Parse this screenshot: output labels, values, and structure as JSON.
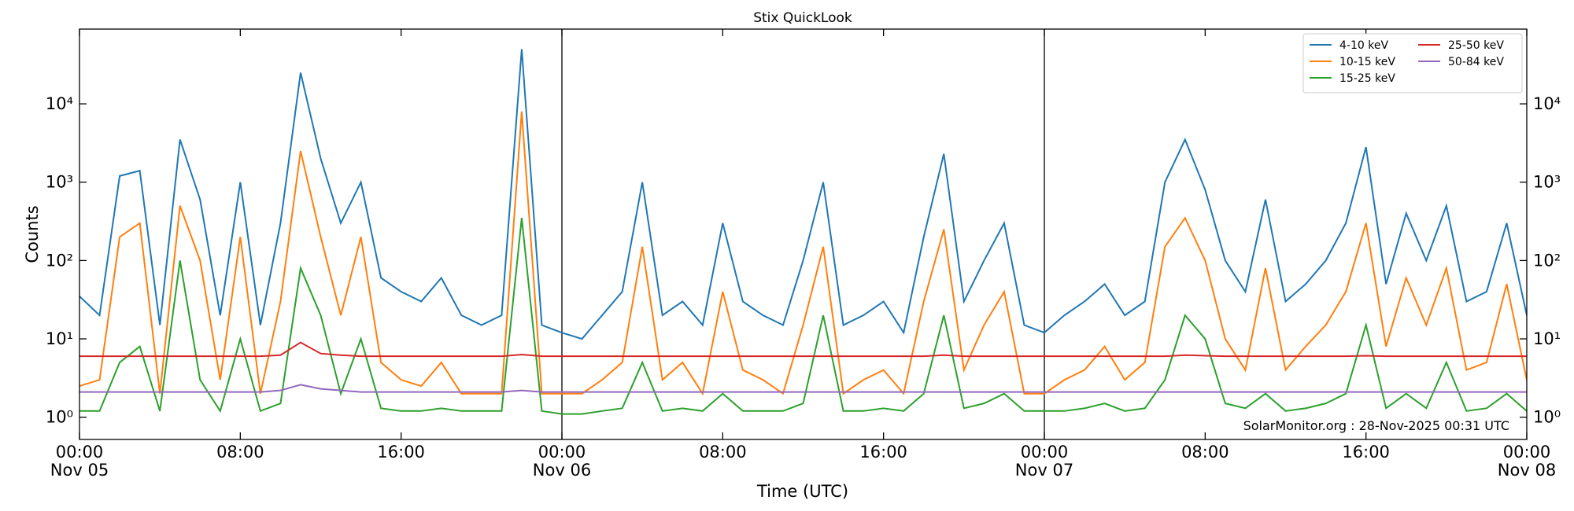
{
  "chart_data": {
    "type": "line",
    "title": "Stix QuickLook",
    "x_label": "Time (UTC)",
    "y_label": "Counts",
    "annotation": "SolarMonitor.org : 28-Nov-2025 00:31 UTC",
    "log_y": true,
    "legend": "upper right",
    "legend_columns": 2,
    "x": [
      0,
      1,
      2,
      3,
      4,
      5,
      6,
      7,
      8,
      9,
      10,
      11,
      12,
      13,
      14,
      15,
      16,
      17,
      18,
      19,
      20,
      21,
      22,
      23,
      24,
      25,
      26,
      27,
      28,
      29,
      30,
      31,
      32,
      33,
      34,
      35,
      36,
      37,
      38,
      39,
      40,
      41,
      42,
      43,
      44,
      45,
      46,
      47,
      48,
      49,
      50,
      51,
      52,
      53,
      54,
      55,
      56,
      57,
      58,
      59,
      60,
      61,
      62,
      63,
      64,
      65,
      66,
      67,
      68,
      69,
      70,
      71,
      72
    ],
    "xlim": [
      0,
      72
    ],
    "xticks": [
      {
        "value": 0,
        "label": "00:00\nNov 05"
      },
      {
        "value": 8,
        "label": "08:00"
      },
      {
        "value": 16,
        "label": "16:00"
      },
      {
        "value": 24,
        "label": "00:00\nNov 06"
      },
      {
        "value": 32,
        "label": "08:00"
      },
      {
        "value": 40,
        "label": "16:00"
      },
      {
        "value": 48,
        "label": "00:00\nNov 07"
      },
      {
        "value": 56,
        "label": "08:00"
      },
      {
        "value": 64,
        "label": "16:00"
      },
      {
        "value": 72,
        "label": "00:00\nNov 08"
      }
    ],
    "vlines": [
      24,
      48
    ],
    "ylim": [
      0.52,
      90000
    ],
    "yticks": [
      {
        "value": 1,
        "label": "10⁰"
      },
      {
        "value": 10,
        "label": "10¹"
      },
      {
        "value": 100,
        "label": "10²"
      },
      {
        "value": 1000,
        "label": "10³"
      },
      {
        "value": 10000,
        "label": "10⁴"
      }
    ],
    "series": [
      {
        "name": "4-10 keV",
        "color": "#1f77b4",
        "values": [
          35,
          20,
          1200,
          1400,
          15,
          3500,
          600,
          20,
          1000,
          15,
          300,
          25000,
          2000,
          300,
          1000,
          60,
          40,
          30,
          60,
          20,
          15,
          20,
          50000,
          15,
          12,
          10,
          20,
          40,
          1000,
          20,
          30,
          15,
          300,
          30,
          20,
          15,
          100,
          1000,
          15,
          20,
          30,
          12,
          200,
          2300,
          30,
          100,
          300,
          15,
          12,
          20,
          30,
          50,
          20,
          30,
          1000,
          3500,
          800,
          100,
          40,
          600,
          30,
          50,
          100,
          300,
          2800,
          50,
          400,
          100,
          500,
          30,
          40,
          300,
          20
        ]
      },
      {
        "name": "10-15 keV",
        "color": "#ff7f0e",
        "values": [
          2.5,
          3,
          200,
          300,
          2,
          500,
          100,
          3,
          200,
          2,
          30,
          2500,
          200,
          20,
          200,
          5,
          3,
          2.5,
          5,
          2,
          2,
          2,
          8000,
          2,
          2,
          2,
          3,
          5,
          150,
          3,
          5,
          2,
          40,
          4,
          3,
          2,
          15,
          150,
          2,
          3,
          4,
          2,
          30,
          250,
          4,
          15,
          40,
          2,
          2,
          3,
          4,
          8,
          3,
          5,
          150,
          350,
          100,
          10,
          4,
          80,
          4,
          8,
          15,
          40,
          300,
          8,
          60,
          15,
          80,
          4,
          5,
          50,
          3
        ]
      },
      {
        "name": "15-25 keV",
        "color": "#2ca02c",
        "values": [
          1.2,
          1.2,
          5,
          8,
          1.2,
          100,
          3,
          1.2,
          10,
          1.2,
          1.5,
          80,
          20,
          2,
          10,
          1.3,
          1.2,
          1.2,
          1.3,
          1.2,
          1.2,
          1.2,
          350,
          1.2,
          1.1,
          1.1,
          1.2,
          1.3,
          5,
          1.2,
          1.3,
          1.2,
          2,
          1.2,
          1.2,
          1.2,
          1.5,
          20,
          1.2,
          1.2,
          1.3,
          1.2,
          2,
          20,
          1.3,
          1.5,
          2,
          1.2,
          1.2,
          1.2,
          1.3,
          1.5,
          1.2,
          1.3,
          3,
          20,
          10,
          1.5,
          1.3,
          2,
          1.2,
          1.3,
          1.5,
          2,
          15,
          1.3,
          2,
          1.3,
          5,
          1.2,
          1.3,
          2,
          1.2
        ]
      },
      {
        "name": "25-50 keV",
        "color": "#d62728",
        "values": [
          6,
          6,
          6,
          6,
          6,
          6,
          6,
          6,
          6,
          6,
          6.2,
          9,
          6.5,
          6.2,
          6,
          6,
          6,
          6,
          6,
          6,
          6,
          6,
          6.3,
          6,
          6,
          6,
          6,
          6,
          6,
          6,
          6,
          6,
          6,
          6,
          6,
          6,
          6,
          6,
          6,
          6,
          6,
          6,
          6,
          6.2,
          6,
          6,
          6,
          6,
          6,
          6,
          6,
          6,
          6,
          6,
          6,
          6.2,
          6.1,
          6,
          6,
          6,
          6,
          6,
          6,
          6,
          6.1,
          6,
          6,
          6,
          6,
          6,
          6,
          6,
          6
        ]
      },
      {
        "name": "50-84 keV",
        "color": "#9467bd",
        "values": [
          2.1,
          2.1,
          2.1,
          2.1,
          2.1,
          2.1,
          2.1,
          2.1,
          2.1,
          2.1,
          2.2,
          2.6,
          2.3,
          2.2,
          2.1,
          2.1,
          2.1,
          2.1,
          2.1,
          2.1,
          2.1,
          2.1,
          2.2,
          2.1,
          2.1,
          2.1,
          2.1,
          2.1,
          2.1,
          2.1,
          2.1,
          2.1,
          2.1,
          2.1,
          2.1,
          2.1,
          2.1,
          2.1,
          2.1,
          2.1,
          2.1,
          2.1,
          2.1,
          2.1,
          2.1,
          2.1,
          2.1,
          2.1,
          2.1,
          2.1,
          2.1,
          2.1,
          2.1,
          2.1,
          2.1,
          2.1,
          2.1,
          2.1,
          2.1,
          2.1,
          2.1,
          2.1,
          2.1,
          2.1,
          2.1,
          2.1,
          2.1,
          2.1,
          2.1,
          2.1,
          2.1,
          2.1,
          2.1
        ]
      }
    ]
  }
}
